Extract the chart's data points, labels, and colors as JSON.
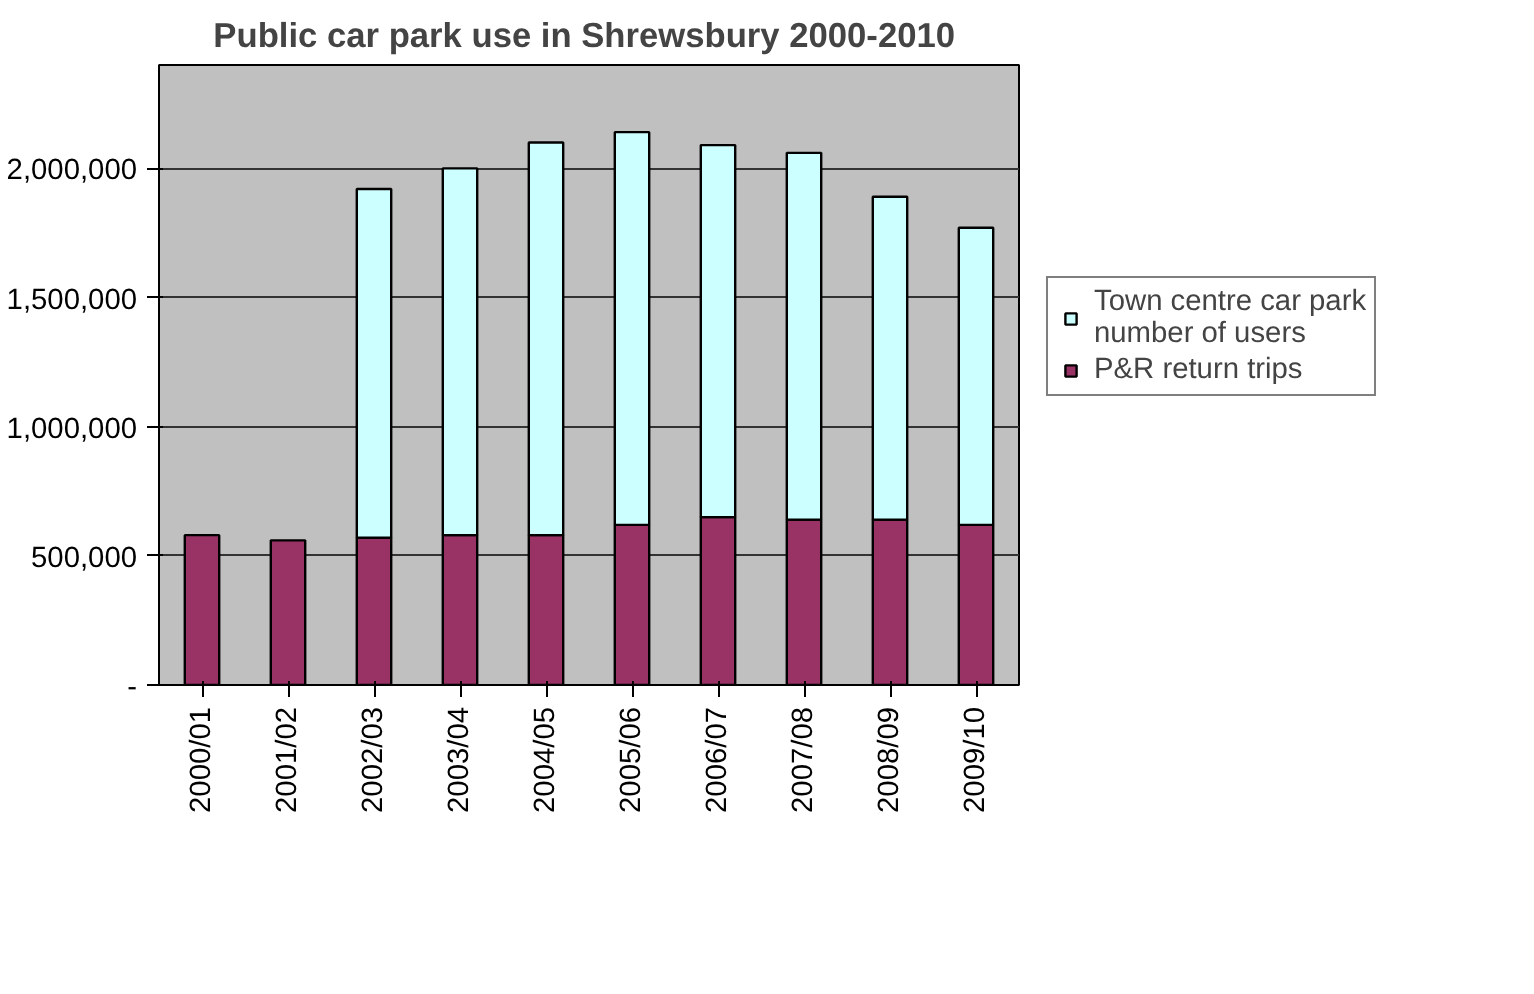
{
  "chart_data": {
    "type": "bar",
    "title": "Public car park use in Shrewsbury  2000-2010",
    "categories": [
      "2000/01",
      "2001/02",
      "2002/03",
      "2003/04",
      "2004/05",
      "2005/06",
      "2006/07",
      "2007/08",
      "2008/09",
      "2009/10"
    ],
    "stacked": true,
    "series": [
      {
        "name": "P&R return trips",
        "color": "#993366",
        "values": [
          580000,
          560000,
          570000,
          580000,
          580000,
          620000,
          650000,
          640000,
          640000,
          620000
        ]
      },
      {
        "name": "Town centre car park number of users",
        "color": "#ccffff",
        "values": [
          null,
          null,
          1350000,
          1420000,
          1520000,
          1520000,
          1440000,
          1420000,
          1250000,
          1150000
        ]
      }
    ],
    "ylim": [
      0,
      2400000
    ],
    "yticks": [
      {
        "value": 0,
        "label": "-"
      },
      {
        "value": 500000,
        "label": "500,000"
      },
      {
        "value": 1000000,
        "label": "1,000,000"
      },
      {
        "value": 1500000,
        "label": "1,500,000"
      },
      {
        "value": 2000000,
        "label": "2,000,000"
      }
    ],
    "grid": "y",
    "legend": "right"
  }
}
